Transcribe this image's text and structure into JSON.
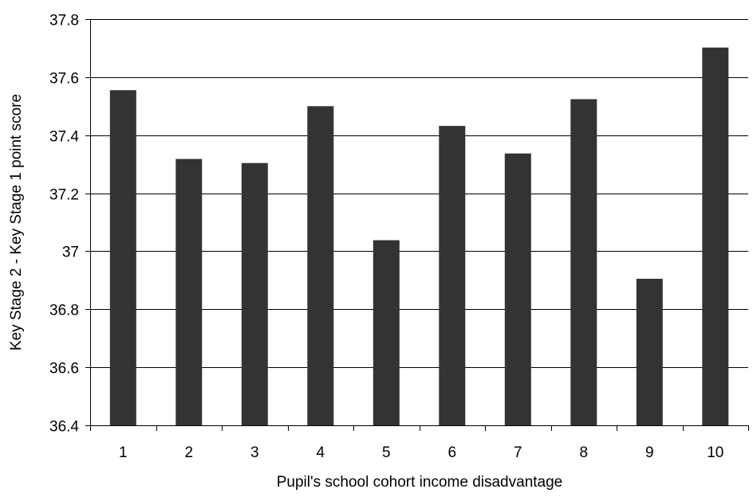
{
  "chart_data": {
    "type": "bar",
    "title": "",
    "xlabel": "Pupil's school cohort income disadvantage",
    "ylabel": "Key Stage 2 - Key Stage 1 point score",
    "categories": [
      "1",
      "2",
      "3",
      "4",
      "5",
      "6",
      "7",
      "8",
      "9",
      "10"
    ],
    "values": [
      37.555,
      37.318,
      37.304,
      37.5,
      37.038,
      37.432,
      37.337,
      37.524,
      36.905,
      37.702
    ],
    "ylim": [
      36.4,
      37.8
    ],
    "yticks": [
      36.4,
      36.6,
      36.8,
      37.0,
      37.2,
      37.4,
      37.6,
      37.8
    ],
    "ytick_labels": [
      "36.4",
      "36.6",
      "36.8",
      "37",
      "37.2",
      "37.4",
      "37.6",
      "37.8"
    ],
    "grid": true,
    "legend": "none",
    "bar_color": "#333333",
    "grid_color": "#000000"
  }
}
